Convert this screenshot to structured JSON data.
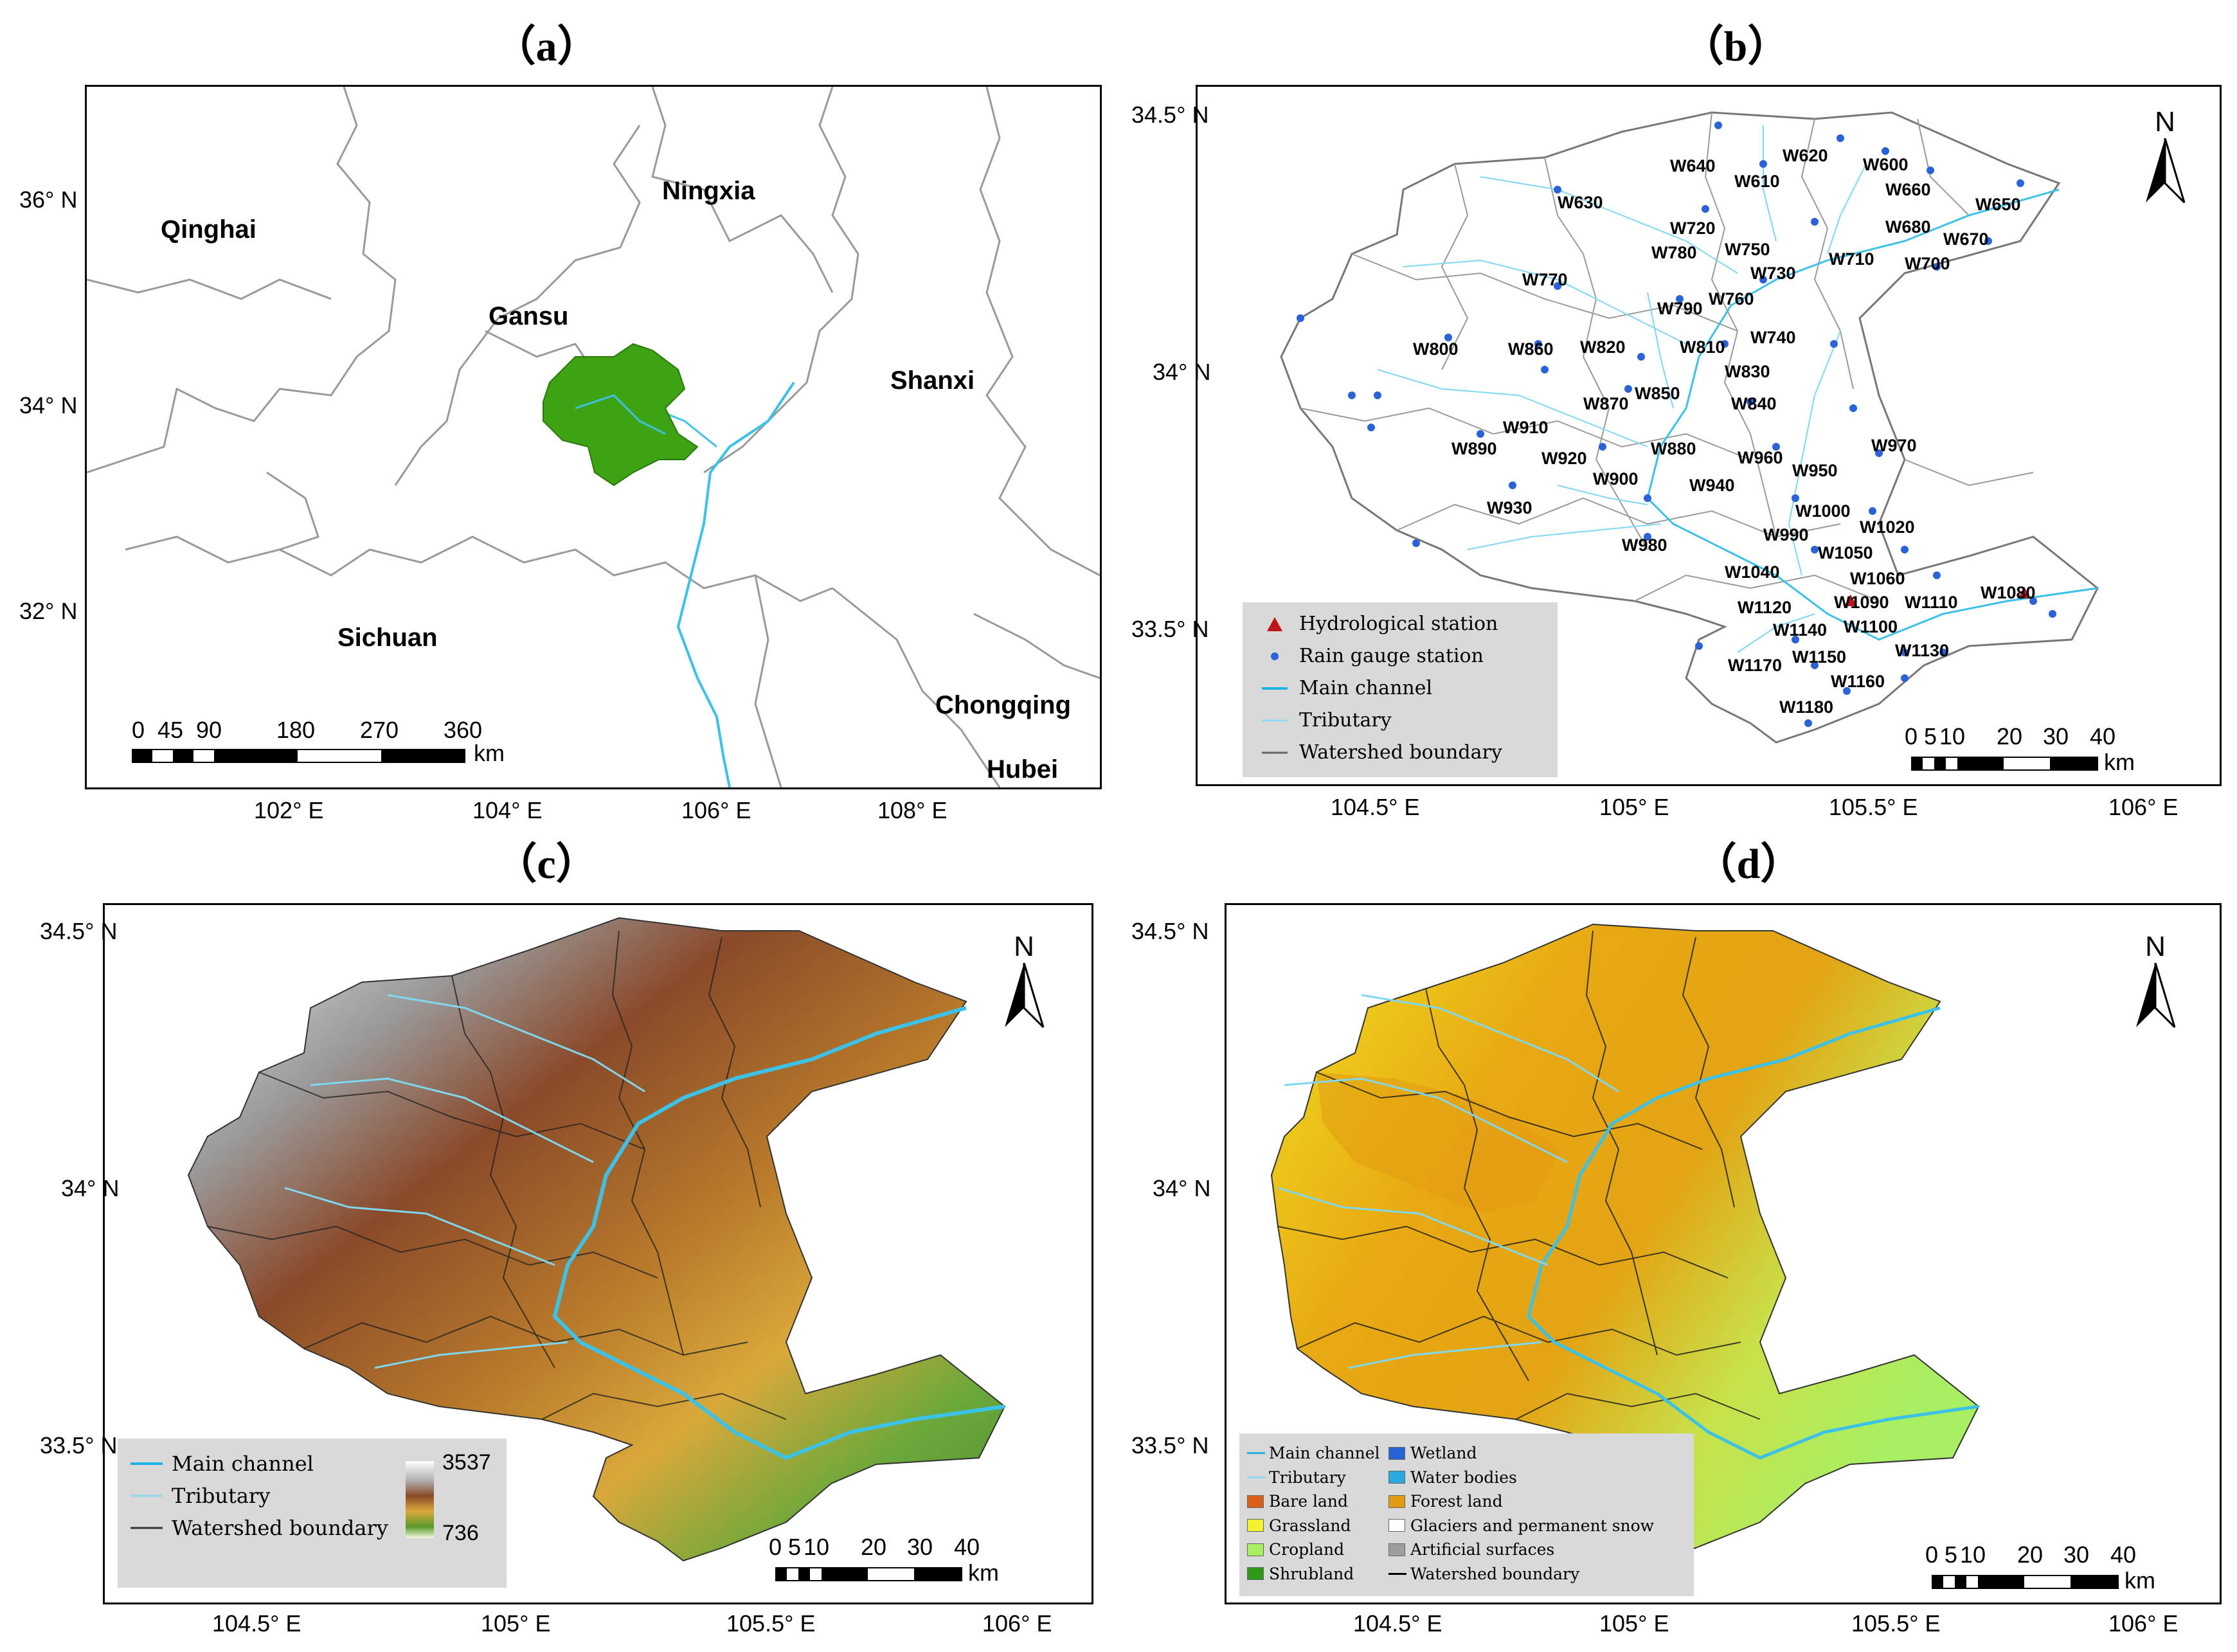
{
  "panels": {
    "a": {
      "label": "（a）",
      "provinces": [
        "Qinghai",
        "Ningxia",
        "Gansu",
        "Shanxi",
        "Sichuan",
        "Chongqing",
        "Hubei"
      ],
      "lat_ticks": [
        "36° N",
        "34° N",
        "32° N"
      ],
      "lon_ticks": [
        "102° E",
        "104° E",
        "106° E",
        "108° E"
      ],
      "scale_ticks": [
        "0",
        "45",
        "90",
        "180",
        "270",
        "360"
      ],
      "scale_unit": "km",
      "colors": {
        "watershed": "#3ea312",
        "river": "#3cc2e8",
        "boundary": "#9a9a9a"
      }
    },
    "b": {
      "label": "（b）",
      "lat_ticks": [
        "34.5° N",
        "34° N",
        "33.5° N"
      ],
      "lon_ticks": [
        "104.5° E",
        "105° E",
        "105.5° E",
        "106° E"
      ],
      "scale_ticks": [
        "0",
        "5",
        "10",
        "20",
        "30",
        "40"
      ],
      "scale_unit": "km",
      "north": "N",
      "stations": [
        "W640",
        "W620",
        "W600",
        "W610",
        "W660",
        "W650",
        "W630",
        "W720",
        "W680",
        "W670",
        "W780",
        "W750",
        "W710",
        "W700",
        "W730",
        "W770",
        "W790",
        "W760",
        "W740",
        "W800",
        "W860",
        "W820",
        "W810",
        "W830",
        "W850",
        "W840",
        "W870",
        "W910",
        "W890",
        "W920",
        "W880",
        "W960",
        "W970",
        "W900",
        "W940",
        "W950",
        "W930",
        "W1000",
        "W1020",
        "W980",
        "W990",
        "W1050",
        "W1040",
        "W1060",
        "W1080",
        "W1120",
        "W1090",
        "W1110",
        "W1140",
        "W1100",
        "W1130",
        "W1170",
        "W1150",
        "W1160",
        "W1180"
      ],
      "legend": {
        "hydrological": "Hydrological station",
        "rain_gauge": "Rain gauge station",
        "main_channel": "Main channel",
        "tributary": "Tributary",
        "boundary": "Watershed boundary"
      }
    },
    "c": {
      "label": "（c）",
      "lat_ticks": [
        "34.5° N",
        "34° N",
        "33.5° N"
      ],
      "lon_ticks": [
        "104.5° E",
        "105° E",
        "105.5° E",
        "106° E"
      ],
      "scale_ticks": [
        "0",
        "5",
        "10",
        "20",
        "30",
        "40"
      ],
      "scale_unit": "km",
      "north": "N",
      "legend": {
        "main_channel": "Main channel",
        "tributary": "Tributary",
        "boundary": "Watershed boundary",
        "elev_max": "3537",
        "elev_min": "736"
      }
    },
    "d": {
      "label": "（d）",
      "lat_ticks": [
        "34.5° N",
        "34° N",
        "33.5° N"
      ],
      "lon_ticks": [
        "104.5° E",
        "105° E",
        "105.5° E",
        "106° E"
      ],
      "scale_ticks": [
        "0",
        "5",
        "10",
        "20",
        "30",
        "40"
      ],
      "scale_unit": "km",
      "north": "N",
      "legend_left": [
        "Main channel",
        "Tributary",
        "Bare land",
        "Grassland",
        "Cropland",
        "Shrubland"
      ],
      "legend_right": [
        "Wetland",
        "Water bodies",
        "Forest land",
        "Glaciers and permanent snow",
        "Artificial surfaces",
        "Watershed boundary"
      ],
      "legend_colors_left": [
        "#1fb3e6",
        "#8fd9f2",
        "#d95f1a",
        "#f2f22e",
        "#a8ef62",
        "#2e9a18"
      ],
      "legend_colors_right": [
        "#2463d6",
        "#2aa9e0",
        "#e29a10",
        "#ffffff",
        "#9e9e9e",
        "#000000"
      ]
    }
  }
}
